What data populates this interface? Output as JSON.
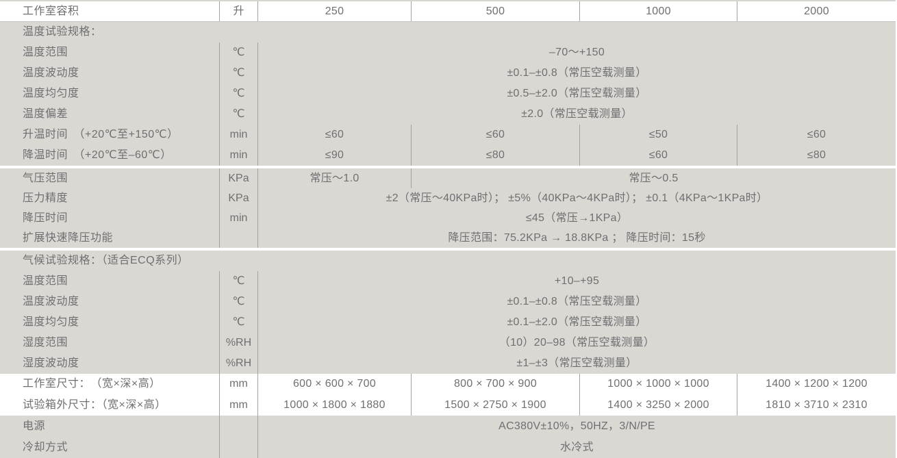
{
  "colors": {
    "section_background": "#dbd8d4",
    "text": "#6e6f71",
    "grid_line": "#a6a29e",
    "first_row_top_border": "#d8d5d1",
    "first_row_bottom_border": "#c6c2be",
    "white_row_background": "#ffffff"
  },
  "table": {
    "sections": [
      {
        "shade": "white",
        "rows": [
          {
            "label": "工作室容积",
            "unit": "升",
            "cells": [
              {
                "text": "250",
                "span": 1
              },
              {
                "text": "500",
                "span": 1
              },
              {
                "text": "1000",
                "span": 1
              },
              {
                "text": "2000",
                "span": 1
              }
            ]
          }
        ]
      },
      {
        "shade": "gray",
        "rows": [
          {
            "header": "温度试验规格："
          },
          {
            "label": "温度范围",
            "unit": "℃",
            "cells": [
              {
                "text": "–70～+150",
                "span": 4
              }
            ]
          },
          {
            "label": "温度波动度",
            "unit": "℃",
            "cells": [
              {
                "text": "±0.1–±0.8（常压空载测量）",
                "span": 4
              }
            ]
          },
          {
            "label": "温度均匀度",
            "unit": "℃",
            "cells": [
              {
                "text": "±0.5–±2.0（常压空载测量）",
                "span": 4
              }
            ]
          },
          {
            "label": "温度偏差",
            "unit": "℃",
            "cells": [
              {
                "text": "±2.0（常压空载测量）",
                "span": 4
              }
            ]
          },
          {
            "label": "升温时间　（+20℃至+150℃）",
            "unit": "min",
            "cells": [
              {
                "text": "≤60",
                "span": 1
              },
              {
                "text": "≤60",
                "span": 1
              },
              {
                "text": "≤50",
                "span": 1
              },
              {
                "text": "≤60",
                "span": 1
              }
            ]
          },
          {
            "label": "降温时间　（+20℃至–60℃）",
            "unit": "min",
            "cells": [
              {
                "text": "≤90",
                "span": 1
              },
              {
                "text": "≤80",
                "span": 1
              },
              {
                "text": "≤60",
                "span": 1
              },
              {
                "text": "≤80",
                "span": 1
              }
            ]
          }
        ]
      },
      {
        "shade": "gray",
        "gap": true,
        "rows": [
          {
            "label": "气压范围",
            "unit": "KPa",
            "cells": [
              {
                "text": "常压～1.0",
                "span": 1
              },
              {
                "text": "常压～0.5",
                "span": 3
              }
            ]
          },
          {
            "label": "压力精度",
            "unit": "KPa",
            "cells": [
              {
                "text": "±2（常压～40KPa时）； ±5%（40KPa～4KPa时）； ±0.1（4KPa～1KPa时）",
                "span": 4
              }
            ]
          },
          {
            "label": "降压时间",
            "unit": "min",
            "cells": [
              {
                "text": "≤45（常压→1KPa）",
                "span": 4
              }
            ]
          },
          {
            "label": "扩展快速降压功能",
            "unit": "",
            "cells": [
              {
                "text": "降压范围：75.2KPa → 18.8KPa ； 降压时间：15秒",
                "span": 4
              }
            ]
          }
        ]
      },
      {
        "shade": "gray",
        "gap": true,
        "rows": [
          {
            "header": "气候试验规格：（适合ECQ系列）"
          },
          {
            "label": "温度范围",
            "unit": "℃",
            "cells": [
              {
                "text": "+10–+95",
                "span": 4
              }
            ]
          },
          {
            "label": "温度波动度",
            "unit": "℃",
            "cells": [
              {
                "text": "±0.1–±0.8（常压空载测量）",
                "span": 4
              }
            ]
          },
          {
            "label": "温度均匀度",
            "unit": "℃",
            "cells": [
              {
                "text": "±0.1–±2.0（常压空载测量）",
                "span": 4
              }
            ]
          },
          {
            "label": "湿度范围",
            "unit": "%RH",
            "cells": [
              {
                "text": "（10）20–98（常压空载测量）",
                "span": 4
              }
            ]
          },
          {
            "label": "湿度波动度",
            "unit": "%RH",
            "cells": [
              {
                "text": "±1–±3（常压空载测量）",
                "span": 4
              }
            ]
          }
        ]
      },
      {
        "shade": "white",
        "rows": [
          {
            "label": "工作室尺寸：　（宽×深×高）",
            "unit": "mm",
            "cells": [
              {
                "text": "600 × 600 × 700",
                "span": 1
              },
              {
                "text": "800 × 700 × 900",
                "span": 1
              },
              {
                "text": "1000 × 1000 × 1000",
                "span": 1
              },
              {
                "text": "1400 × 1200 × 1200",
                "span": 1
              }
            ]
          },
          {
            "label": "试验箱外尺寸：（宽×深×高）",
            "unit": "mm",
            "cells": [
              {
                "text": "1000 × 1800 × 1880",
                "span": 1
              },
              {
                "text": "1500 × 2750 × 1900",
                "span": 1
              },
              {
                "text": "1400 × 3250 × 2000",
                "span": 1
              },
              {
                "text": "1810 × 3710 × 2310",
                "span": 1
              }
            ]
          }
        ]
      },
      {
        "shade": "gray",
        "rows": [
          {
            "label": "电源",
            "unit": "",
            "cells": [
              {
                "text": "AC380V±10%，50HZ，3/N/PE",
                "span": 4
              }
            ]
          },
          {
            "label": "冷却方式",
            "unit": "",
            "cells": [
              {
                "text": "水冷式",
                "span": 4
              }
            ]
          }
        ]
      }
    ]
  }
}
